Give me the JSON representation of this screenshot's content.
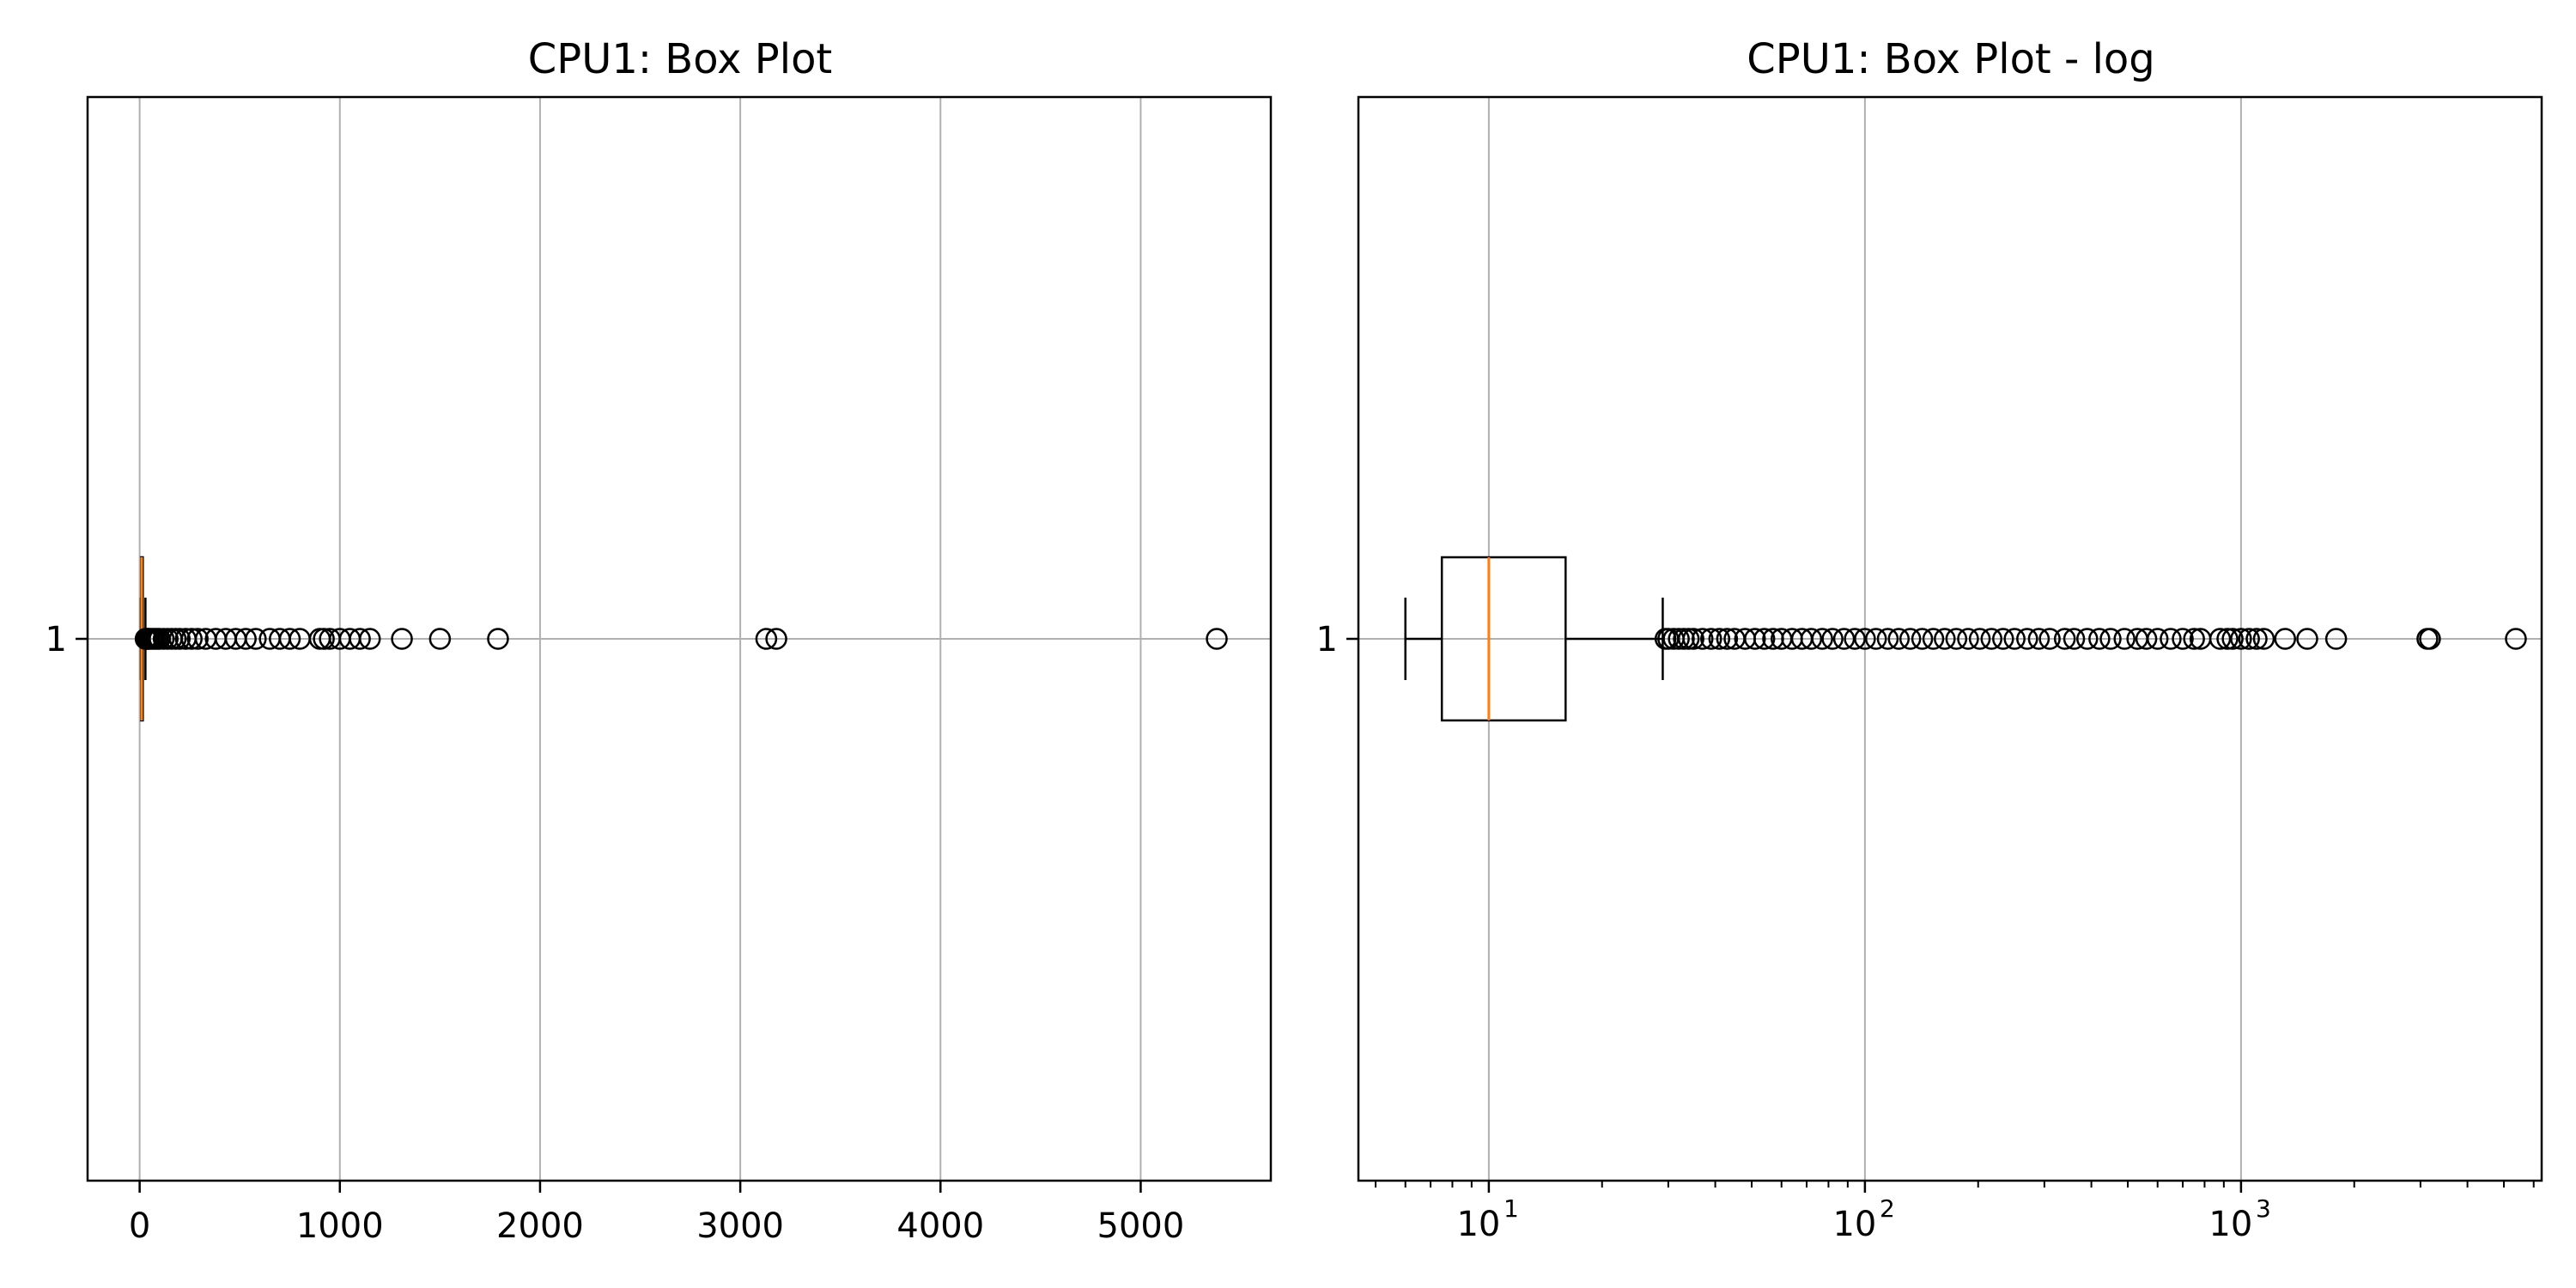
{
  "chart_data": [
    {
      "type": "box",
      "title": "CPU1: Box Plot",
      "orientation": "horizontal",
      "xscale": "linear",
      "xlim": [
        -260,
        5650
      ],
      "xticks": [
        0,
        1000,
        2000,
        3000,
        4000,
        5000
      ],
      "xtick_labels": [
        "0",
        "1000",
        "2000",
        "3000",
        "4000",
        "5000"
      ],
      "yticks": [
        1
      ],
      "ytick_labels": [
        "1"
      ],
      "grid": true,
      "box": {
        "whisker_low": 6,
        "q1": 7.5,
        "median": 10,
        "q3": 16,
        "whisker_high": 29
      },
      "outliers": [
        30,
        35,
        40,
        45,
        50,
        60,
        70,
        80,
        90,
        100,
        120,
        140,
        160,
        180,
        200,
        230,
        260,
        290,
        330,
        380,
        430,
        480,
        530,
        580,
        650,
        700,
        750,
        800,
        900,
        920,
        950,
        1000,
        1050,
        1100,
        1150,
        1310,
        1500,
        1790,
        3130,
        3180,
        5380
      ],
      "colors": {
        "box": "#000000",
        "median": "#ff7f0e"
      }
    },
    {
      "type": "box",
      "title": "CPU1: Box Plot - log",
      "orientation": "horizontal",
      "xscale": "log",
      "xlim": [
        4.5,
        6300
      ],
      "xticks": [
        10,
        100,
        1000
      ],
      "xtick_labels": [
        "10",
        "2",
        "3"
      ],
      "yticks": [
        1
      ],
      "ytick_labels": [
        "1"
      ],
      "grid": true,
      "box": {
        "whisker_low": 6,
        "q1": 7.5,
        "median": 10,
        "q3": 16,
        "whisker_high": 29
      },
      "outliers": [
        29.5,
        30,
        31,
        32,
        33,
        34,
        35,
        37,
        39,
        41,
        43,
        45,
        48,
        51,
        54,
        57,
        60,
        64,
        68,
        72,
        77,
        82,
        88,
        94,
        100,
        107,
        115,
        123,
        132,
        142,
        152,
        163,
        175,
        188,
        202,
        217,
        233,
        250,
        270,
        290,
        310,
        340,
        360,
        390,
        420,
        450,
        490,
        530,
        560,
        600,
        650,
        700,
        750,
        780,
        880,
        920,
        950,
        1000,
        1050,
        1100,
        1150,
        1310,
        1500,
        1790,
        3130,
        3180,
        5380
      ],
      "colors": {
        "box": "#000000",
        "median": "#ff7f0e"
      }
    }
  ]
}
